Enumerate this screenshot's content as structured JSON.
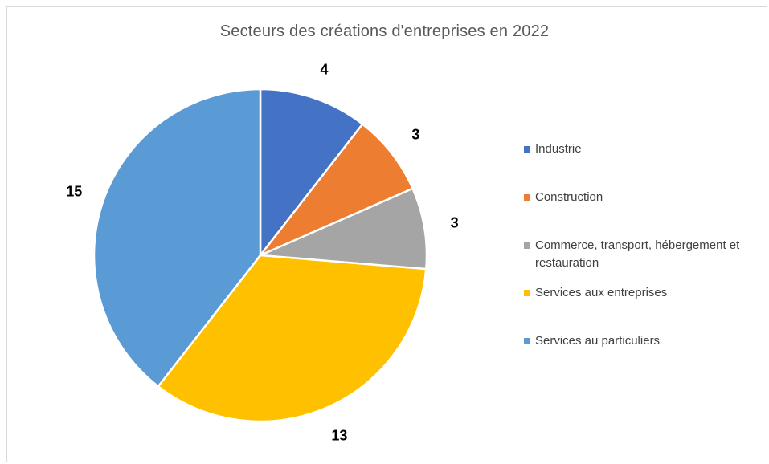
{
  "chart_data": {
    "type": "pie",
    "title": "Secteurs des créations d'entreprises en 2022",
    "categories": [
      "Industrie",
      "Construction",
      "Commerce, transport, hébergement et restauration",
      "Services aux entreprises",
      "Services au particuliers"
    ],
    "values": [
      4,
      3,
      3,
      13,
      15
    ],
    "colors": [
      "#4472c4",
      "#ed7d31",
      "#a5a5a5",
      "#ffc000",
      "#5b9bd5"
    ],
    "data_labels": [
      "4",
      "3",
      "3",
      "13",
      "15"
    ],
    "legend_position": "right",
    "start_angle": "top",
    "direction": "clockwise"
  }
}
